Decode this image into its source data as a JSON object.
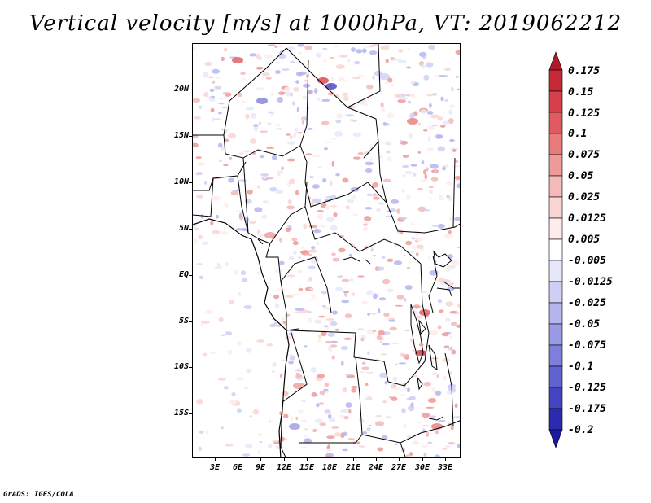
{
  "title": "Vertical velocity [m/s] at 1000hPa, VT: 2019062212",
  "footer": "GrADS: IGES/COLA",
  "lat_labels": [
    "20N",
    "15N",
    "10N",
    "5N",
    "EQ",
    "5S",
    "10S",
    "15S"
  ],
  "lon_labels": [
    "3E",
    "6E",
    "9E",
    "12E",
    "15E",
    "18E",
    "21E",
    "24E",
    "27E",
    "30E",
    "33E"
  ],
  "colorbar": {
    "labels": [
      "0.175",
      "0.15",
      "0.125",
      "0.1",
      "0.075",
      "0.05",
      "0.025",
      "0.0125",
      "0.005",
      "-0.005",
      "-0.0125",
      "-0.025",
      "-0.05",
      "-0.075",
      "-0.1",
      "-0.125",
      "-0.175",
      "-0.2"
    ],
    "colors": [
      "#b2182b",
      "#c62a34",
      "#d6404a",
      "#e05a5f",
      "#e77b7b",
      "#ee9a99",
      "#f4b9b8",
      "#f9d5d4",
      "#fdeceb",
      "#ffffff",
      "#e7e7fa",
      "#cfcff5",
      "#b5b5ee",
      "#9a9ae6",
      "#7e7edc",
      "#6161d0",
      "#4444c2",
      "#2b2bb0",
      "#1a1aa0"
    ]
  }
}
